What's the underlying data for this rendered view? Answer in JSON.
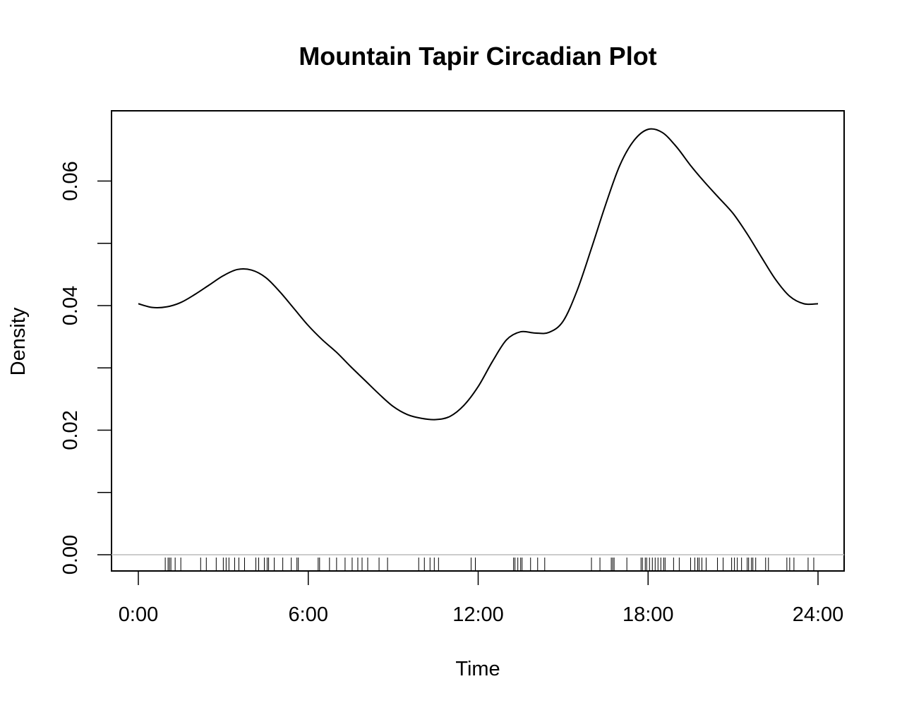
{
  "chart_data": {
    "type": "line",
    "title": "Mountain Tapir Circadian Plot",
    "xlabel": "Time",
    "ylabel": "Density",
    "xlim": [
      0,
      24
    ],
    "ylim": [
      0,
      0.07
    ],
    "x_ticks": [
      {
        "value": 0,
        "label": "0:00"
      },
      {
        "value": 6,
        "label": "6:00"
      },
      {
        "value": 12,
        "label": "12:00"
      },
      {
        "value": 18,
        "label": "18:00"
      },
      {
        "value": 24,
        "label": "24:00"
      }
    ],
    "y_ticks": [
      {
        "value": 0.0,
        "label": "0.00"
      },
      {
        "value": 0.01,
        "label": ""
      },
      {
        "value": 0.02,
        "label": "0.02"
      },
      {
        "value": 0.03,
        "label": ""
      },
      {
        "value": 0.04,
        "label": "0.04"
      },
      {
        "value": 0.05,
        "label": ""
      },
      {
        "value": 0.06,
        "label": "0.06"
      }
    ],
    "grid": false,
    "legend": "none",
    "baseline": {
      "y": 0,
      "color": "#bbbbbb"
    },
    "series": [
      {
        "color": "#000000",
        "x": [
          0,
          0.5,
          1.0,
          1.5,
          2.0,
          2.5,
          3.0,
          3.5,
          4.0,
          4.5,
          5.0,
          5.5,
          6.0,
          6.5,
          7.0,
          7.5,
          8.0,
          8.5,
          9.0,
          9.5,
          10.0,
          10.5,
          11.0,
          11.5,
          12.0,
          12.5,
          13.0,
          13.5,
          14.0,
          14.5,
          15.0,
          15.5,
          16.0,
          16.5,
          17.0,
          17.5,
          18.0,
          18.5,
          19.0,
          19.5,
          20.0,
          20.5,
          21.0,
          21.5,
          22.0,
          22.5,
          23.0,
          23.5,
          24.0
        ],
        "y": [
          0.0403,
          0.0397,
          0.0398,
          0.0405,
          0.0418,
          0.0433,
          0.0448,
          0.0458,
          0.0457,
          0.0445,
          0.0422,
          0.0395,
          0.0368,
          0.0345,
          0.0325,
          0.0302,
          0.028,
          0.0258,
          0.0238,
          0.0225,
          0.0219,
          0.0217,
          0.0222,
          0.024,
          0.027,
          0.031,
          0.0345,
          0.0358,
          0.0356,
          0.0357,
          0.0375,
          0.0425,
          0.0492,
          0.0562,
          0.0625,
          0.0665,
          0.0683,
          0.0678,
          0.0655,
          0.0625,
          0.0598,
          0.0573,
          0.0548,
          0.0515,
          0.0478,
          0.0442,
          0.0415,
          0.0403,
          0.0403
        ]
      }
    ],
    "rug": [
      0.95,
      1.05,
      1.1,
      1.15,
      1.3,
      1.5,
      2.2,
      2.4,
      2.75,
      3.0,
      3.1,
      3.2,
      3.4,
      3.55,
      3.75,
      4.15,
      4.25,
      4.45,
      4.55,
      4.6,
      4.8,
      5.1,
      5.4,
      5.6,
      5.65,
      6.35,
      6.4,
      6.75,
      7.0,
      7.3,
      7.55,
      7.75,
      7.9,
      8.1,
      8.5,
      8.8,
      9.9,
      10.1,
      10.3,
      10.45,
      10.6,
      11.75,
      11.9,
      13.25,
      13.3,
      13.4,
      13.5,
      13.55,
      13.85,
      14.1,
      14.35,
      16.0,
      16.3,
      16.7,
      16.75,
      16.8,
      17.25,
      17.75,
      17.8,
      17.9,
      17.95,
      18.05,
      18.15,
      18.25,
      18.35,
      18.45,
      18.55,
      18.6,
      18.9,
      19.1,
      19.5,
      19.65,
      19.75,
      19.8,
      19.9,
      20.05,
      20.45,
      20.65,
      20.95,
      21.05,
      21.15,
      21.3,
      21.5,
      21.55,
      21.65,
      21.7,
      21.8,
      22.15,
      22.25,
      22.9,
      23.0,
      23.15,
      23.65,
      23.85
    ]
  }
}
